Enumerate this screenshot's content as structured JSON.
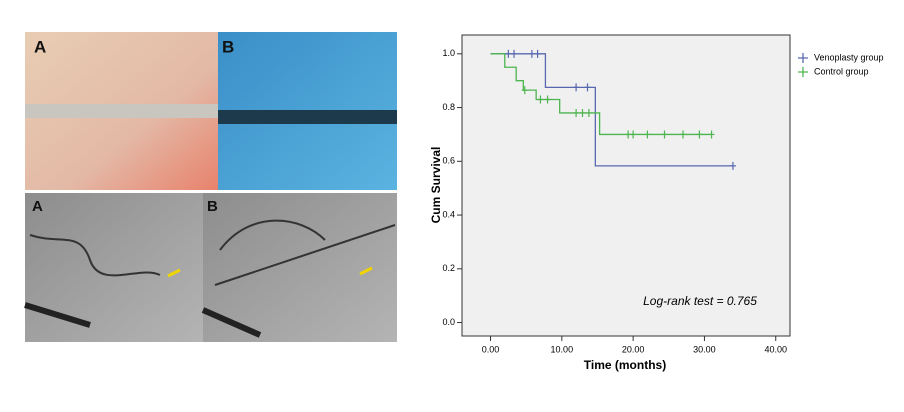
{
  "panels": {
    "photo_labels": [
      "A",
      "B",
      "A",
      "B"
    ]
  },
  "chart_data": {
    "type": "km",
    "ylabel": "Cum Survival",
    "xlabel": "Time (months)",
    "annotation": "Log-rank test = 0.765",
    "xlim": [
      -4,
      42
    ],
    "ylim": [
      -0.05,
      1.07
    ],
    "xticks": [
      {
        "value": 0,
        "label": "0.00"
      },
      {
        "value": 10,
        "label": "10.00"
      },
      {
        "value": 20,
        "label": "20.00"
      },
      {
        "value": 30,
        "label": "30.00"
      },
      {
        "value": 40,
        "label": "40.00"
      }
    ],
    "yticks": [
      {
        "value": 0,
        "label": "0.0"
      },
      {
        "value": 0.2,
        "label": "0.2"
      },
      {
        "value": 0.4,
        "label": "0.4"
      },
      {
        "value": 0.6,
        "label": "0.6"
      },
      {
        "value": 0.8,
        "label": "0.8"
      },
      {
        "value": 1,
        "label": "1.0"
      }
    ],
    "series": [
      {
        "name": "Venoplasty group",
        "color": "#5868b0",
        "x": [
          0,
          7.7,
          14.7,
          34
        ],
        "values": [
          1,
          0.875,
          0.583,
          0.583
        ],
        "censored_x": [
          2.5,
          3.3,
          5.8,
          6.6,
          12,
          13.6,
          34
        ],
        "censored_values": [
          1,
          1,
          1,
          1,
          0.875,
          0.875,
          0.583
        ]
      },
      {
        "name": "Control group",
        "color": "#4db54f",
        "x": [
          0,
          2,
          3.6,
          4.6,
          6.4,
          9.7,
          15.3,
          31
        ],
        "values": [
          1,
          0.95,
          0.9,
          0.865,
          0.83,
          0.78,
          0.7,
          0.7
        ],
        "censored_x": [
          4.8,
          7,
          8,
          12,
          12.9,
          13.8,
          19.3,
          20,
          22,
          24.4,
          27,
          29.3,
          31
        ],
        "censored_values": [
          0.865,
          0.83,
          0.83,
          0.78,
          0.78,
          0.78,
          0.7,
          0.7,
          0.7,
          0.7,
          0.7,
          0.7,
          0.7
        ]
      }
    ]
  }
}
